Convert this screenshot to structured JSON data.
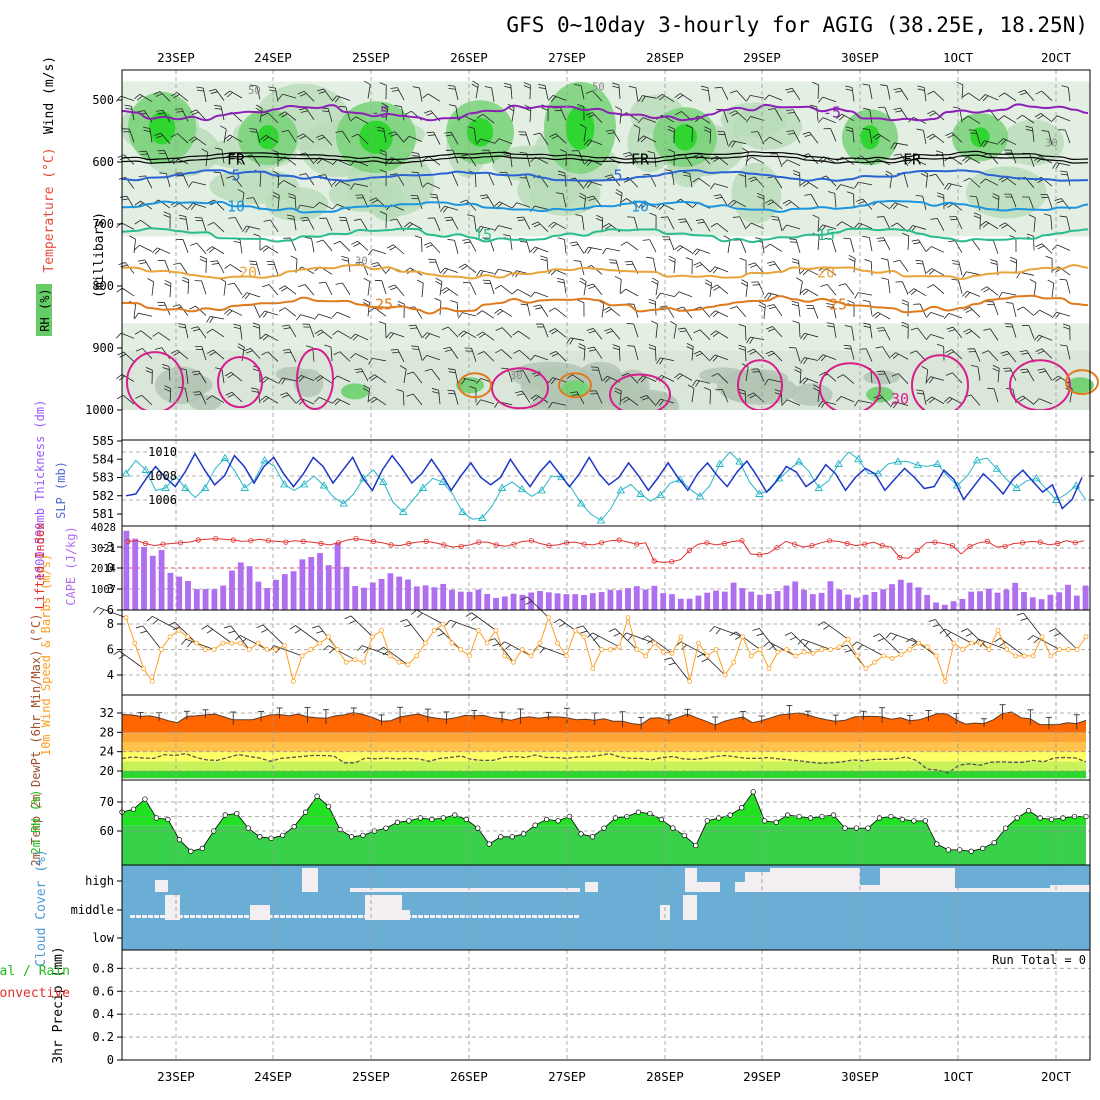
{
  "title": "GFS 0~10day 3-hourly for AGIG (38.25E, 18.25N)",
  "dates": [
    "23SEP",
    "24SEP",
    "25SEP",
    "26SEP",
    "27SEP",
    "28SEP",
    "29SEP",
    "30SEP",
    "1OCT",
    "2OCT"
  ],
  "chart_data": [
    {
      "id": "upper_air",
      "type": "heatmap",
      "ylabel": "(millibars)",
      "yticks": [
        500,
        600,
        700,
        800,
        900,
        1000
      ],
      "ylim": [
        1000,
        450
      ],
      "legend_labels": [
        "RH (%)",
        "Temperature (°C)",
        "Wind (m/s)"
      ],
      "temperature_isotherms": [
        {
          "label": "-5",
          "level": 620
        },
        {
          "label": "FR",
          "level": 590
        },
        {
          "label": "5",
          "level": 580
        },
        {
          "label": "10",
          "level": 670
        },
        {
          "label": "15",
          "level": 718
        },
        {
          "label": "20",
          "level": 775
        },
        {
          "label": "25",
          "level": 830
        },
        {
          "label": "30",
          "level": 940
        }
      ],
      "rh_labels": [
        "30",
        "50"
      ]
    },
    {
      "id": "thickness_slp",
      "type": "line",
      "ylabel_left": "1000-500mb Thickness (dm)",
      "ylabel_right": "SLP (mb)",
      "left_ticks": [
        581,
        582,
        583,
        584,
        585
      ],
      "right_ticks": [
        1006,
        1008,
        1010
      ],
      "series": [
        {
          "name": "Thickness",
          "values": [
            582.0,
            582.1,
            582.9,
            583.6,
            583.0,
            582.5,
            583.3,
            584.3,
            583.4,
            582.6,
            583.1,
            584.2,
            583.6,
            582.7,
            583.6,
            584.1,
            583.2,
            582.5,
            583.2,
            584.1,
            583.6,
            582.7,
            583.4,
            584.1,
            583.0,
            582.3,
            583.4,
            584.2,
            583.5,
            582.7,
            583.2,
            584.0,
            583.2,
            582.3,
            583.1,
            583.8,
            583.0,
            582.6,
            583.0,
            584.0,
            583.2,
            582.5,
            583.3,
            583.9,
            583.2,
            582.5,
            583.2,
            584.1,
            583.2,
            582.6,
            583.0,
            583.8,
            583.1,
            582.3,
            583.0,
            583.8,
            583.0,
            582.3,
            583.2,
            583.8,
            583.1,
            582.5,
            583.3,
            583.9,
            583.1,
            582.2,
            582.8,
            583.6,
            583.3,
            582.5,
            582.9,
            583.7,
            583.2,
            582.3,
            583.0,
            583.5,
            583.2,
            582.3,
            582.9,
            583.5,
            583.0,
            582.4,
            582.5,
            583.4,
            582.9,
            581.8,
            582.5,
            583.2,
            582.7,
            582.1,
            582.9,
            583.4,
            582.8,
            582.2,
            582.6,
            581.3,
            581.8,
            583.0
          ]
        },
        {
          "name": "SLP",
          "values": [
            1008.2,
            1009.3,
            1008.5,
            1006.8,
            1007.0,
            1008.0,
            1007.0,
            1006.2,
            1007.0,
            1008.6,
            1009.5,
            1008.4,
            1007.0,
            1007.7,
            1009.3,
            1008.8,
            1007.3,
            1006.8,
            1007.3,
            1008.0,
            1007.2,
            1006.2,
            1005.7,
            1006.5,
            1007.8,
            1008.5,
            1007.5,
            1005.8,
            1005.0,
            1006.0,
            1007.0,
            1007.8,
            1007.5,
            1006.5,
            1005.0,
            1004.4,
            1004.5,
            1005.5,
            1007.0,
            1007.5,
            1006.9,
            1006.3,
            1006.8,
            1008.0,
            1007.9,
            1007.0,
            1005.7,
            1004.8,
            1004.3,
            1005.3,
            1006.8,
            1007.3,
            1006.5,
            1005.9,
            1006.4,
            1007.4,
            1007.7,
            1006.9,
            1006.3,
            1007.2,
            1009.0,
            1010.0,
            1009.2,
            1007.5,
            1006.5,
            1006.8,
            1007.8,
            1008.5,
            1009.2,
            1008.4,
            1007.0,
            1007.6,
            1009.0,
            1010.0,
            1009.4,
            1008.2,
            1008.2,
            1009.0,
            1009.2,
            1009.2,
            1008.9,
            1008.8,
            1009.0,
            1008.0,
            1007.2,
            1008.0,
            1009.3,
            1009.5,
            1008.6,
            1007.7,
            1007.0,
            1007.6,
            1007.8,
            1006.9,
            1006.0,
            1006.5,
            1007.2,
            1006.0
          ]
        }
      ]
    },
    {
      "id": "stability",
      "type": "bar",
      "ylabel_left": "Lifted Index",
      "ylabel_right": "CAPE (J/kg)",
      "left_ticks": [
        "-3",
        "0",
        "3",
        "6"
      ],
      "right_ticks": [
        "1007",
        "2014",
        "3021",
        "4028"
      ],
      "cape_values": [
        3800,
        3420,
        3020,
        2600,
        2880,
        1780,
        1600,
        1390,
        1000,
        1000,
        1000,
        1170,
        1890,
        2280,
        2100,
        1360,
        1050,
        1450,
        1720,
        1860,
        2430,
        2540,
        2730,
        2150,
        3230,
        2070,
        1150,
        1070,
        1320,
        1490,
        1760,
        1600,
        1460,
        1130,
        1180,
        1090,
        1250,
        970,
        880,
        870,
        980,
        770,
        580,
        650,
        780,
        730,
        840,
        910,
        850,
        800,
        760,
        760,
        720,
        810,
        860,
        970,
        950,
        1050,
        1140,
        980,
        1160,
        810,
        760,
        540,
        540,
        690,
        830,
        930,
        880,
        1310,
        1050,
        880,
        730,
        770,
        910,
        1170,
        1370,
        970,
        760,
        820,
        1380,
        980,
        740,
        590,
        730,
        860,
        990,
        1240,
        1450,
        1310,
        1090,
        720,
        360,
        250,
        420,
        530,
        880,
        900,
        1020,
        830,
        980,
        1300,
        860,
        610,
        520,
        730,
        850,
        1210,
        690,
        1170
      ],
      "lifted_index_values": [
        -3.8,
        -3.9,
        -3.5,
        -3.2,
        -3.4,
        -3.5,
        -3.6,
        -3.7,
        -4.0,
        -4.1,
        -4.2,
        -4.1,
        -4.0,
        -3.8,
        -3.9,
        -4.1,
        -3.9,
        -3.8,
        -3.7,
        -3.9,
        -3.8,
        -3.7,
        -3.5,
        -3.3,
        -3.6,
        -4.0,
        -4.2,
        -4.0,
        -3.8,
        -3.6,
        -3.3,
        -3.2,
        -3.5,
        -3.7,
        -3.8,
        -3.6,
        -3.3,
        -3.0,
        -3.1,
        -3.3,
        -3.7,
        -3.7,
        -3.3,
        -3.1,
        -3.4,
        -3.8,
        -3.9,
        -3.5,
        -3.2,
        -3.3,
        -3.6,
        -3.7,
        -3.4,
        -3.3,
        -3.6,
        -3.9,
        -4.0,
        -3.7,
        -3.4,
        -3.6,
        -1.0,
        -0.8,
        -0.9,
        -1.2,
        -2.5,
        -3.4,
        -3.6,
        -3.3,
        -3.5,
        -3.8,
        -3.9,
        -2.0,
        -1.9,
        -2.1,
        -2.9,
        -3.8,
        -3.4,
        -3.0,
        -3.2,
        -3.6,
        -3.9,
        -3.8,
        -3.5,
        -3.2,
        -3.4,
        -3.7,
        -3.2,
        -3.0,
        -1.5,
        -1.4,
        -2.5,
        -3.6,
        -3.7,
        -3.5,
        -3.2,
        -2.0,
        -3.1,
        -3.6,
        -3.8,
        -3.0,
        -3.1,
        -3.5,
        -3.6,
        -3.8,
        -3.7,
        -3.3,
        -3.5,
        -3.9,
        -3.6,
        -3.9
      ]
    },
    {
      "id": "wind10m",
      "type": "line",
      "ylabel": "10m Wind Speed & Barbs (m/s)",
      "yticks": [
        "4",
        "6",
        "8"
      ],
      "ylim": [
        3,
        8.8
      ],
      "values": [
        8.5,
        6.5,
        4.5,
        3.5,
        6.0,
        7.0,
        7.5,
        7.0,
        6.5,
        6.0,
        6.0,
        6.5,
        6.5,
        6.5,
        6.0,
        6.5,
        6.0,
        6.0,
        6.3,
        3.5,
        5.5,
        6.0,
        6.5,
        7.0,
        6.0,
        5.0,
        5.2,
        5.0,
        7.0,
        7.5,
        5.5,
        5.0,
        4.8,
        5.5,
        6.5,
        7.5,
        8.0,
        6.5,
        6.0,
        5.5,
        7.5,
        6.5,
        7.5,
        5.5,
        5.0,
        6.0,
        5.5,
        6.5,
        8.5,
        6.5,
        5.5,
        7.5,
        7.0,
        4.5,
        6.0,
        6.0,
        6.2,
        8.5,
        6.0,
        5.5,
        6.5,
        5.8,
        5.7,
        7.0,
        3.5,
        6.5,
        5.5,
        6.0,
        4.0,
        5.0,
        7.0,
        5.5,
        6.0,
        4.5,
        5.8,
        6.0,
        5.5,
        5.8,
        5.7,
        6.0,
        6.0,
        6.2,
        6.8,
        5.5,
        4.5,
        5.0,
        5.5,
        5.3,
        5.6,
        6.0,
        6.5,
        6.2,
        5.5,
        3.5,
        6.5,
        6.0,
        6.5,
        6.5,
        6.0,
        7.5,
        6.0,
        5.5,
        5.5,
        5.5,
        7.0,
        5.5,
        6.0,
        6.0,
        6.0,
        7.0
      ]
    },
    {
      "id": "temperature",
      "type": "area",
      "ylabel": "2m Temp 2m DewPt (6hr Min/Max) (°C)",
      "yticks": [
        "20",
        "24",
        "28",
        "32"
      ],
      "ylim": [
        18.5,
        34.5
      ],
      "temp_values": [
        31.7,
        31.6,
        31.3,
        31.4,
        31.0,
        30.4,
        30.0,
        31.3,
        31.4,
        31.6,
        31.8,
        31.2,
        30.6,
        30.6,
        30.6,
        31.1,
        31.6,
        31.7,
        31.4,
        31.8,
        31.2,
        31.0,
        30.9,
        31.4,
        31.6,
        32.1,
        31.7,
        31.1,
        30.3,
        30.4,
        31.2,
        31.5,
        31.8,
        31.2,
        30.9,
        30.7,
        31.0,
        31.5,
        31.4,
        31.5,
        31.0,
        30.8,
        30.5,
        31.0,
        31.2,
        30.9,
        31.2,
        31.2,
        31.0,
        30.6,
        30.7,
        30.5,
        30.8,
        30.3,
        30.3,
        29.8,
        29.6,
        30.9,
        31.0,
        30.5,
        31.1,
        31.8,
        31.0,
        30.3,
        29.5,
        30.3,
        30.8,
        31.2,
        30.0,
        30.4,
        31.0,
        31.6,
        31.8,
        32.0,
        31.6,
        31.0,
        30.6,
        30.3,
        30.5,
        31.2,
        31.3,
        31.3,
        31.2,
        30.7,
        31.0,
        30.4,
        30.6,
        31.2,
        31.9,
        31.8,
        30.6,
        29.7,
        29.9,
        29.8,
        30.6,
        31.9,
        32.2,
        31.0,
        30.8,
        29.6,
        29.6,
        29.6,
        30.0,
        29.8,
        30.5
      ],
      "dewpoint_values": [
        22.6,
        22.9,
        22.7,
        22.6,
        23.4,
        23.2,
        23.6,
        22.8,
        22.3,
        22.2,
        22.8,
        23.4,
        23.0,
        22.7,
        22.0,
        22.6,
        22.8,
        23.0,
        23.2,
        23.2,
        23.1,
        21.7,
        21.7,
        22.7,
        22.5,
        22.7,
        22.5,
        22.6,
        22.5,
        22.0,
        22.6,
        22.8,
        23.1,
        22.4,
        22.2,
        22.2,
        22.8,
        23.0,
        22.8,
        23.3,
        22.8,
        22.8,
        22.6,
        22.9,
        22.9,
        23.2,
        23.6,
        22.9,
        22.6,
        22.6,
        22.3,
        22.8,
        23.0,
        22.5,
        22.4,
        22.6,
        23.0,
        23.2,
        22.9,
        22.6,
        22.6,
        22.8,
        22.5,
        22.3,
        22.1,
        21.8,
        21.6,
        21.7,
        21.9,
        22.3,
        22.1,
        22.4,
        22.4,
        22.5,
        22.9,
        22.2,
        20.4,
        20.2,
        19.6,
        21.2,
        21.5,
        21.2,
        21.8,
        21.9,
        21.8,
        21.8,
        22.2,
        21.9,
        22.7,
        22.8,
        22.7,
        21.9
      ],
      "minmax_bar_count": 40
    },
    {
      "id": "rh2m",
      "type": "area",
      "ylabel": "2m RH (%)",
      "yticks": [
        "60",
        "70"
      ],
      "ylim": [
        52,
        75
      ],
      "values": [
        66.5,
        67.5,
        71.0,
        64.5,
        64.0,
        57.0,
        53.0,
        54.0,
        60.0,
        65.5,
        66.0,
        61.0,
        58.0,
        57.5,
        58.5,
        61.5,
        66.5,
        72.0,
        68.5,
        60.5,
        58.0,
        58.5,
        60.0,
        61.0,
        63.0,
        63.5,
        64.5,
        64.0,
        64.5,
        65.5,
        64.0,
        61.0,
        55.5,
        58.0,
        58.0,
        59.0,
        62.0,
        64.0,
        63.5,
        65.0,
        59.0,
        58.0,
        61.0,
        64.5,
        65.0,
        66.5,
        66.0,
        64.0,
        61.0,
        58.5,
        55.0,
        63.5,
        64.5,
        65.5,
        68.0,
        73.5,
        63.5,
        63.0,
        65.5,
        65.0,
        64.5,
        65.0,
        65.5,
        61.0,
        61.0,
        61.0,
        64.5,
        65.0,
        64.0,
        63.5,
        63.5,
        55.5,
        53.5,
        53.5,
        53.0,
        54.0,
        56.0,
        61.0,
        64.5,
        67.0,
        64.5,
        64.0,
        64.5,
        65.0,
        65.0
      ]
    },
    {
      "id": "cloud_cover",
      "type": "heatmap",
      "ylabel": "Cloud Cover (%)",
      "layers": [
        "high",
        "middle",
        "low"
      ]
    },
    {
      "id": "precip",
      "type": "bar",
      "ylabel": "3hr Precip (mm)",
      "series_labels": [
        "Total / Rain",
        "Convective"
      ],
      "yticks": [
        "0",
        "0.2",
        "0.4",
        "0.6",
        "0.8"
      ],
      "ylim": [
        0,
        0.96
      ],
      "values": [],
      "annotation": "Run Total = 0"
    }
  ],
  "colors": {
    "rh_dark": "#2fd62f",
    "rh_mid": "#78d278",
    "rh_light": "#b6dbb6",
    "rh_pale": "#e3efe3",
    "rh_gray": "#b3c4b3",
    "t_purple": "#8d1fb8",
    "t_blue": "#2b62d4",
    "t_sky": "#1c95e0",
    "t_teal": "#2bbc8e",
    "t_gold": "#e7a53a",
    "t_orange": "#e07b1d",
    "t_magenta": "#d61f8a",
    "thickness": "#1b36c8",
    "slp": "#27b6c7",
    "cape": "#b06ef0",
    "lifted_index": "#e03030",
    "wind": "#ff9e20",
    "temp_fill": "#ff6600",
    "rh_fill": "#39d14a",
    "cloud": "#6aaed6",
    "cloud_clear": "#f2eef2"
  }
}
